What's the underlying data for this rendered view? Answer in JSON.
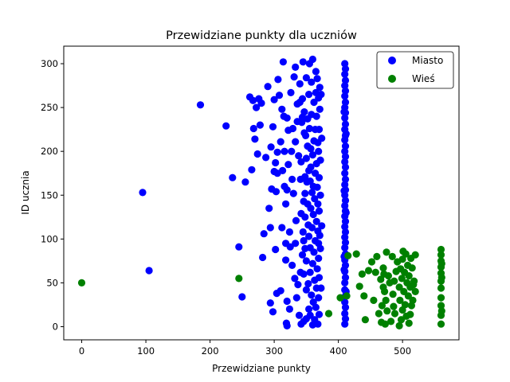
{
  "chart_data": {
    "type": "scatter",
    "title": "Przewidziane punkty dla uczniów",
    "xlabel": "Przewidziane punkty",
    "ylabel": "ID ucznia",
    "xlim": [
      -28,
      588
    ],
    "ylim": [
      -15,
      320
    ],
    "xticks": [
      0,
      100,
      200,
      300,
      400,
      500
    ],
    "yticks": [
      0,
      50,
      100,
      150,
      200,
      250,
      300
    ],
    "legend_position": "top-right",
    "grid": false,
    "series": [
      {
        "name": "Miasto",
        "color": "#0000ff",
        "points": [
          [
            95,
            153
          ],
          [
            105,
            64
          ],
          [
            185,
            253
          ],
          [
            225,
            229
          ],
          [
            235,
            170
          ],
          [
            245,
            91
          ],
          [
            250,
            34
          ],
          [
            255,
            165
          ],
          [
            262,
            262
          ],
          [
            265,
            179
          ],
          [
            267,
            258
          ],
          [
            268,
            226
          ],
          [
            270,
            214
          ],
          [
            272,
            250
          ],
          [
            274,
            197
          ],
          [
            276,
            260
          ],
          [
            278,
            230
          ],
          [
            280,
            255
          ],
          [
            282,
            79
          ],
          [
            284,
            106
          ],
          [
            287,
            193
          ],
          [
            290,
            274
          ],
          [
            292,
            135
          ],
          [
            294,
            27
          ],
          [
            294,
            113
          ],
          [
            295,
            205
          ],
          [
            296,
            157
          ],
          [
            298,
            17
          ],
          [
            298,
            228
          ],
          [
            300,
            177
          ],
          [
            300,
            259
          ],
          [
            302,
            187
          ],
          [
            302,
            88
          ],
          [
            303,
            154
          ],
          [
            304,
            38
          ],
          [
            305,
            175
          ],
          [
            305,
            199
          ],
          [
            306,
            282
          ],
          [
            308,
            264
          ],
          [
            310,
            41
          ],
          [
            310,
            211
          ],
          [
            312,
            248
          ],
          [
            312,
            113
          ],
          [
            313,
            178
          ],
          [
            314,
            302
          ],
          [
            315,
            240
          ],
          [
            316,
            200
          ],
          [
            316,
            160
          ],
          [
            318,
            76
          ],
          [
            318,
            95
          ],
          [
            318,
            140
          ],
          [
            319,
            4
          ],
          [
            320,
            1
          ],
          [
            320,
            29
          ],
          [
            320,
            156
          ],
          [
            320,
            238
          ],
          [
            322,
            185
          ],
          [
            322,
            224
          ],
          [
            324,
            20
          ],
          [
            324,
            108
          ],
          [
            325,
            91
          ],
          [
            326,
            267
          ],
          [
            327,
            200
          ],
          [
            328,
            70
          ],
          [
            328,
            168
          ],
          [
            329,
            226
          ],
          [
            330,
            152
          ],
          [
            331,
            285
          ],
          [
            332,
            55
          ],
          [
            333,
            95
          ],
          [
            333,
            211
          ],
          [
            333,
            296
          ],
          [
            334,
            121
          ],
          [
            335,
            33
          ],
          [
            336,
            234
          ],
          [
            336,
            254
          ],
          [
            337,
            48
          ],
          [
            338,
            195
          ],
          [
            339,
            13
          ],
          [
            340,
            256
          ],
          [
            340,
            277
          ],
          [
            341,
            62
          ],
          [
            341,
            168
          ],
          [
            342,
            3
          ],
          [
            342,
            129
          ],
          [
            342,
            188
          ],
          [
            343,
            233
          ],
          [
            344,
            82
          ],
          [
            344,
            239
          ],
          [
            344,
            260
          ],
          [
            345,
            108
          ],
          [
            345,
            302
          ],
          [
            346,
            6
          ],
          [
            346,
            60
          ],
          [
            346,
            98
          ],
          [
            346,
            143
          ],
          [
            347,
            221
          ],
          [
            347,
            245
          ],
          [
            348,
            89
          ],
          [
            348,
            125
          ],
          [
            348,
            152
          ],
          [
            348,
            171
          ],
          [
            349,
            218
          ],
          [
            350,
            9
          ],
          [
            350,
            42
          ],
          [
            350,
            75
          ],
          [
            350,
            192
          ],
          [
            350,
            284
          ],
          [
            351,
            165
          ],
          [
            352,
            140
          ],
          [
            352,
            206
          ],
          [
            352,
            237
          ],
          [
            353,
            49
          ],
          [
            353,
            116
          ],
          [
            354,
            20
          ],
          [
            354,
            103
          ],
          [
            354,
            178
          ],
          [
            354,
            265
          ],
          [
            355,
            226
          ],
          [
            355,
            300
          ],
          [
            356,
            62
          ],
          [
            356,
            13
          ],
          [
            356,
            90
          ],
          [
            356,
            166
          ],
          [
            357,
            135
          ],
          [
            357,
            182
          ],
          [
            357,
            203
          ],
          [
            358,
            36
          ],
          [
            358,
            242
          ],
          [
            358,
            279
          ],
          [
            359,
            113
          ],
          [
            359,
            153
          ],
          [
            360,
            2
          ],
          [
            360,
            72
          ],
          [
            360,
            196
          ],
          [
            360,
            305
          ],
          [
            361,
            28
          ],
          [
            361,
            128
          ],
          [
            361,
            160
          ],
          [
            362,
            85
          ],
          [
            362,
            212
          ],
          [
            362,
            256
          ],
          [
            363,
            8
          ],
          [
            363,
            53
          ],
          [
            363,
            146
          ],
          [
            364,
            98
          ],
          [
            364,
            175
          ],
          [
            364,
            225
          ],
          [
            365,
            22
          ],
          [
            365,
            267
          ],
          [
            365,
            291
          ],
          [
            366,
            44
          ],
          [
            366,
            120
          ],
          [
            366,
            186
          ],
          [
            366,
            240
          ],
          [
            367,
            66
          ],
          [
            367,
            159
          ],
          [
            367,
            283
          ],
          [
            368,
            3
          ],
          [
            368,
            109
          ],
          [
            368,
            140
          ],
          [
            368,
            210
          ],
          [
            369,
            33
          ],
          [
            369,
            78
          ],
          [
            369,
            95
          ],
          [
            369,
            200
          ],
          [
            369,
            261
          ],
          [
            370,
            14
          ],
          [
            370,
            56
          ],
          [
            370,
            132
          ],
          [
            370,
            170
          ],
          [
            370,
            225
          ],
          [
            371,
            104
          ],
          [
            371,
            248
          ],
          [
            371,
            273
          ],
          [
            372,
            89
          ],
          [
            372,
            150
          ],
          [
            372,
            190
          ],
          [
            373,
            44
          ],
          [
            373,
            265
          ],
          [
            374,
            115
          ],
          [
            374,
            215
          ],
          [
            409,
            80
          ],
          [
            410,
            3
          ],
          [
            410,
            15
          ],
          [
            410,
            28
          ],
          [
            410,
            42
          ],
          [
            410,
            50
          ],
          [
            410,
            63
          ],
          [
            410,
            76
          ],
          [
            410,
            90
          ],
          [
            410,
            102
          ],
          [
            410,
            114
          ],
          [
            410,
            126
          ],
          [
            410,
            138
          ],
          [
            410,
            150
          ],
          [
            410,
            162
          ],
          [
            410,
            175
          ],
          [
            410,
            188
          ],
          [
            410,
            200
          ],
          [
            410,
            213
          ],
          [
            410,
            225
          ],
          [
            410,
            238
          ],
          [
            410,
            250
          ],
          [
            410,
            263
          ],
          [
            410,
            275
          ],
          [
            410,
            288
          ],
          [
            410,
            300
          ],
          [
            411,
            9
          ],
          [
            411,
            22
          ],
          [
            411,
            35
          ],
          [
            411,
            56
          ],
          [
            411,
            70
          ],
          [
            411,
            83
          ],
          [
            411,
            96
          ],
          [
            411,
            108
          ],
          [
            411,
            120
          ],
          [
            411,
            132
          ],
          [
            411,
            144
          ],
          [
            411,
            156
          ],
          [
            411,
            168
          ],
          [
            411,
            182
          ],
          [
            411,
            194
          ],
          [
            411,
            206
          ],
          [
            411,
            218
          ],
          [
            411,
            231
          ],
          [
            411,
            244
          ],
          [
            411,
            256
          ],
          [
            411,
            269
          ],
          [
            411,
            281
          ],
          [
            411,
            294
          ],
          [
            409,
            65
          ],
          [
            409,
            155
          ],
          [
            409,
            245
          ],
          [
            412,
            40
          ],
          [
            412,
            130
          ],
          [
            412,
            220
          ]
        ]
      },
      {
        "name": "Wieś",
        "color": "#008000",
        "points": [
          [
            0,
            50
          ],
          [
            245,
            55
          ],
          [
            385,
            15
          ],
          [
            403,
            33
          ],
          [
            413,
            35
          ],
          [
            415,
            81
          ],
          [
            428,
            83
          ],
          [
            433,
            46
          ],
          [
            437,
            60
          ],
          [
            440,
            35
          ],
          [
            442,
            8
          ],
          [
            447,
            64
          ],
          [
            452,
            74
          ],
          [
            455,
            30
          ],
          [
            458,
            62
          ],
          [
            460,
            80
          ],
          [
            463,
            15
          ],
          [
            466,
            54
          ],
          [
            467,
            5
          ],
          [
            468,
            24
          ],
          [
            470,
            67
          ],
          [
            470,
            45
          ],
          [
            471,
            60
          ],
          [
            472,
            40
          ],
          [
            473,
            3
          ],
          [
            474,
            30
          ],
          [
            475,
            85
          ],
          [
            476,
            18
          ],
          [
            478,
            58
          ],
          [
            480,
            50
          ],
          [
            482,
            6
          ],
          [
            484,
            80
          ],
          [
            485,
            37
          ],
          [
            486,
            23
          ],
          [
            487,
            52
          ],
          [
            488,
            15
          ],
          [
            490,
            63
          ],
          [
            492,
            74
          ],
          [
            495,
            1
          ],
          [
            495,
            45
          ],
          [
            496,
            30
          ],
          [
            497,
            66
          ],
          [
            498,
            8
          ],
          [
            499,
            55
          ],
          [
            500,
            19
          ],
          [
            500,
            77
          ],
          [
            501,
            86
          ],
          [
            502,
            40
          ],
          [
            503,
            62
          ],
          [
            504,
            25
          ],
          [
            505,
            83
          ],
          [
            506,
            12
          ],
          [
            507,
            50
          ],
          [
            508,
            70
          ],
          [
            509,
            35
          ],
          [
            510,
            4
          ],
          [
            510,
            58
          ],
          [
            512,
            14
          ],
          [
            512,
            45
          ],
          [
            513,
            78
          ],
          [
            514,
            24
          ],
          [
            515,
            67
          ],
          [
            516,
            30
          ],
          [
            517,
            48
          ],
          [
            518,
            52
          ],
          [
            520,
            82
          ],
          [
            520,
            40
          ],
          [
            560,
            3
          ],
          [
            560,
            13
          ],
          [
            560,
            24
          ],
          [
            560,
            33
          ],
          [
            560,
            44
          ],
          [
            560,
            52
          ],
          [
            560,
            61
          ],
          [
            560,
            68
          ],
          [
            560,
            75
          ],
          [
            560,
            82
          ],
          [
            560,
            88
          ],
          [
            561,
            18
          ],
          [
            561,
            56
          ],
          [
            561,
            72
          ]
        ]
      }
    ]
  }
}
